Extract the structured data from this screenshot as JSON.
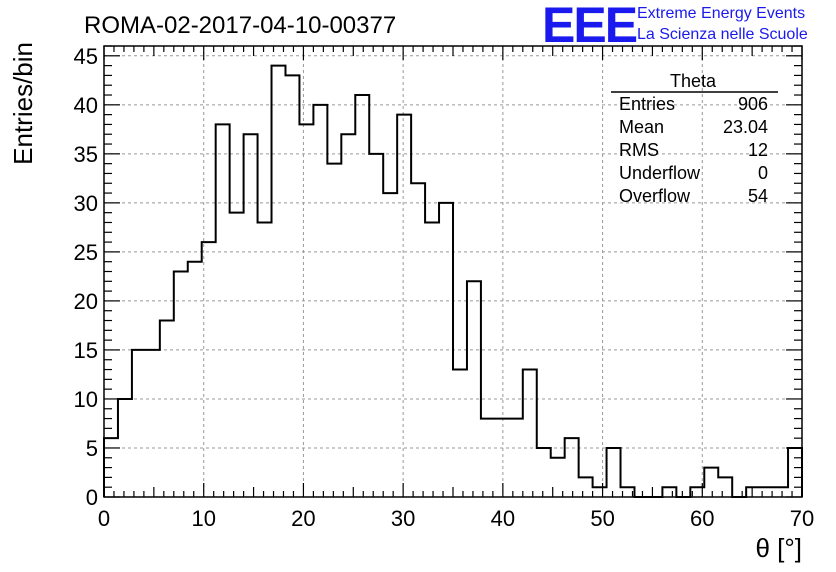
{
  "chart_data": {
    "type": "histogram",
    "title": "ROMA-02-2017-04-10-00377",
    "xlabel": "θ [°]",
    "ylabel": "Entries/bin",
    "xlim": [
      0,
      70
    ],
    "ylim": [
      0,
      46
    ],
    "x_ticks": [
      0,
      10,
      20,
      30,
      40,
      50,
      60,
      70
    ],
    "y_ticks": [
      0,
      5,
      10,
      15,
      20,
      25,
      30,
      35,
      40,
      45
    ],
    "grid": true,
    "bin_width": 1.4,
    "bin_edges_start": 0,
    "values": [
      6,
      10,
      15,
      15,
      18,
      23,
      24,
      26,
      38,
      29,
      37,
      28,
      44,
      43,
      38,
      40,
      34,
      37,
      41,
      35,
      31,
      39,
      32,
      28,
      30,
      13,
      22,
      8,
      8,
      8,
      13,
      5,
      4,
      6,
      2,
      1,
      5,
      1,
      0,
      0,
      1,
      0,
      1,
      3,
      2,
      0,
      1,
      1,
      1,
      5
    ],
    "stats": {
      "name": "Theta",
      "rows": [
        {
          "label": "Entries",
          "value": "906"
        },
        {
          "label": "Mean",
          "value": "23.04"
        },
        {
          "label": "RMS",
          "value": "12"
        },
        {
          "label": "Underflow",
          "value": "0"
        },
        {
          "label": "Overflow",
          "value": "54"
        }
      ]
    }
  },
  "logo": {
    "text": "EEE",
    "line1": "Extreme Energy Events",
    "line2": "La Scienza nelle Scuole",
    "color": "#1a1aee"
  }
}
